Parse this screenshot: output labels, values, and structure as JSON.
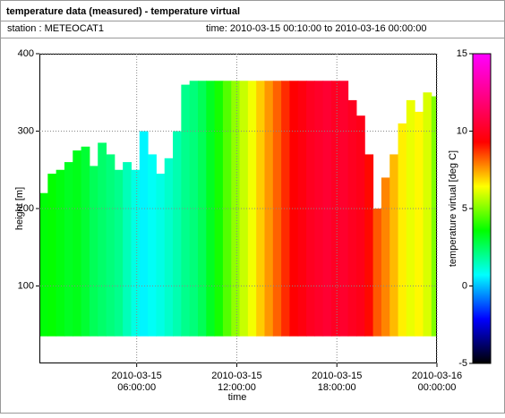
{
  "chart_data": {
    "type": "heatmap",
    "title": "temperature data (measured) - temperature virtual",
    "station": "station : METEOCAT1",
    "time_range": "time: 2010-03-15 00:10:00 to 2010-03-16 00:00:00",
    "xlabel": "time",
    "ylabel": "height [m]",
    "zlabel": "temperature virtual [deg C]",
    "xlim": [
      "2010-03-15 00:10:00",
      "2010-03-16 00:00:00"
    ],
    "xticks": [
      {
        "value": "2010-03-15 06:00:00",
        "label": [
          "2010-03-15",
          "06:00:00"
        ]
      },
      {
        "value": "2010-03-15 12:00:00",
        "label": [
          "2010-03-15",
          "12:00:00"
        ]
      },
      {
        "value": "2010-03-15 18:00:00",
        "label": [
          "2010-03-15",
          "18:00:00"
        ]
      },
      {
        "value": "2010-03-16 00:00:00",
        "label": [
          "2010-03-16",
          "00:00:00"
        ]
      }
    ],
    "ylim": [
      0,
      400
    ],
    "yticks": [
      100,
      200,
      300,
      400
    ],
    "zlim": [
      -5,
      15
    ],
    "zticks": [
      -5,
      0,
      5,
      10,
      15
    ],
    "colorscale": [
      "#000000",
      "#0000ff",
      "#00ffff",
      "#00ff00",
      "#ffff00",
      "#ff0000",
      "#ff0080",
      "#ff00ff"
    ],
    "grid": true,
    "base_height": 35,
    "x": [
      "2010-03-15 00:10:00",
      "2010-03-15 00:40:00",
      "2010-03-15 01:10:00",
      "2010-03-15 01:40:00",
      "2010-03-15 02:10:00",
      "2010-03-15 02:40:00",
      "2010-03-15 03:10:00",
      "2010-03-15 03:40:00",
      "2010-03-15 04:10:00",
      "2010-03-15 04:40:00",
      "2010-03-15 05:10:00",
      "2010-03-15 05:40:00",
      "2010-03-15 06:10:00",
      "2010-03-15 06:40:00",
      "2010-03-15 07:10:00",
      "2010-03-15 07:40:00",
      "2010-03-15 08:10:00",
      "2010-03-15 08:40:00",
      "2010-03-15 09:10:00",
      "2010-03-15 09:40:00",
      "2010-03-15 10:10:00",
      "2010-03-15 10:40:00",
      "2010-03-15 11:10:00",
      "2010-03-15 11:40:00",
      "2010-03-15 12:10:00",
      "2010-03-15 12:40:00",
      "2010-03-15 13:10:00",
      "2010-03-15 13:40:00",
      "2010-03-15 14:10:00",
      "2010-03-15 14:40:00",
      "2010-03-15 15:10:00",
      "2010-03-15 15:40:00",
      "2010-03-15 16:10:00",
      "2010-03-15 16:40:00",
      "2010-03-15 17:10:00",
      "2010-03-15 17:40:00",
      "2010-03-15 18:10:00",
      "2010-03-15 18:40:00",
      "2010-03-15 19:10:00",
      "2010-03-15 19:40:00",
      "2010-03-15 20:10:00",
      "2010-03-15 20:40:00",
      "2010-03-15 21:10:00",
      "2010-03-15 21:40:00",
      "2010-03-15 22:10:00",
      "2010-03-15 22:40:00",
      "2010-03-15 23:10:00",
      "2010-03-15 23:40:00"
    ],
    "tops": [
      220,
      245,
      250,
      260,
      275,
      280,
      255,
      285,
      270,
      250,
      260,
      250,
      300,
      270,
      245,
      265,
      300,
      360,
      365,
      365,
      365,
      365,
      365,
      365,
      365,
      365,
      365,
      365,
      365,
      365,
      365,
      365,
      365,
      365,
      365,
      365,
      365,
      340,
      320,
      270,
      200,
      240,
      270,
      310,
      340,
      325,
      350,
      345
    ],
    "values": [
      3.5,
      3.6,
      3.4,
      3.2,
      3.3,
      3.0,
      2.6,
      2.4,
      2.2,
      2.0,
      1.5,
      1.0,
      0.6,
      0.8,
      1.0,
      1.3,
      1.6,
      2.0,
      2.2,
      2.6,
      3.2,
      3.8,
      4.5,
      5.2,
      5.8,
      6.3,
      7.0,
      7.6,
      8.2,
      8.8,
      9.3,
      9.6,
      10.0,
      10.2,
      10.4,
      10.1,
      10.3,
      10.0,
      9.8,
      9.2,
      8.3,
      7.8,
      7.2,
      6.6,
      6.2,
      6.5,
      6.0,
      5.0
    ]
  }
}
